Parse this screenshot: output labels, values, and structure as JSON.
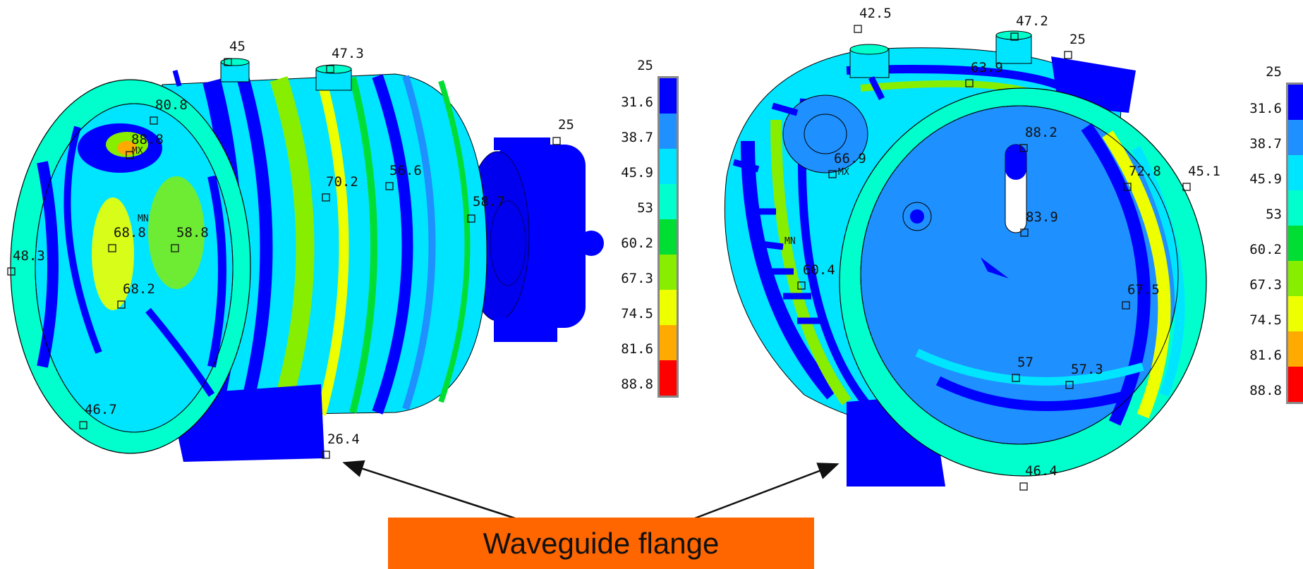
{
  "colorbar": {
    "labels": [
      "25",
      "31.6",
      "38.7",
      "45.9",
      "53",
      "60.2",
      "67.3",
      "74.5",
      "81.6",
      "88.8"
    ],
    "colors": [
      "#0000ff",
      "#1e90ff",
      "#00e5ff",
      "#00ffcc",
      "#00dd33",
      "#88ee00",
      "#eeff00",
      "#ffaa00",
      "#ff0000"
    ]
  },
  "left_view": {
    "probes": [
      {
        "label": "45"
      },
      {
        "label": "47.3"
      },
      {
        "label": "80.8"
      },
      {
        "label": "88.8"
      },
      {
        "label": "70.2"
      },
      {
        "label": "56.6"
      },
      {
        "label": "58.7"
      },
      {
        "label": "25"
      },
      {
        "label": "68.8"
      },
      {
        "label": "58.8"
      },
      {
        "label": "48.3"
      },
      {
        "label": "68.2"
      },
      {
        "label": "46.7"
      },
      {
        "label": "26.4"
      }
    ],
    "mx": "MX",
    "mn": "MN"
  },
  "right_view": {
    "probes": [
      {
        "label": "42.5"
      },
      {
        "label": "47.2"
      },
      {
        "label": "25"
      },
      {
        "label": "63.9"
      },
      {
        "label": "88.2"
      },
      {
        "label": "66.9"
      },
      {
        "label": "72.8"
      },
      {
        "label": "45.1"
      },
      {
        "label": "83.9"
      },
      {
        "label": "60.4"
      },
      {
        "label": "67.5"
      },
      {
        "label": "57"
      },
      {
        "label": "57.3"
      },
      {
        "label": "46.4"
      }
    ],
    "mx": "MX",
    "mn": "MN"
  },
  "callout": {
    "text": "Waveguide flange"
  }
}
